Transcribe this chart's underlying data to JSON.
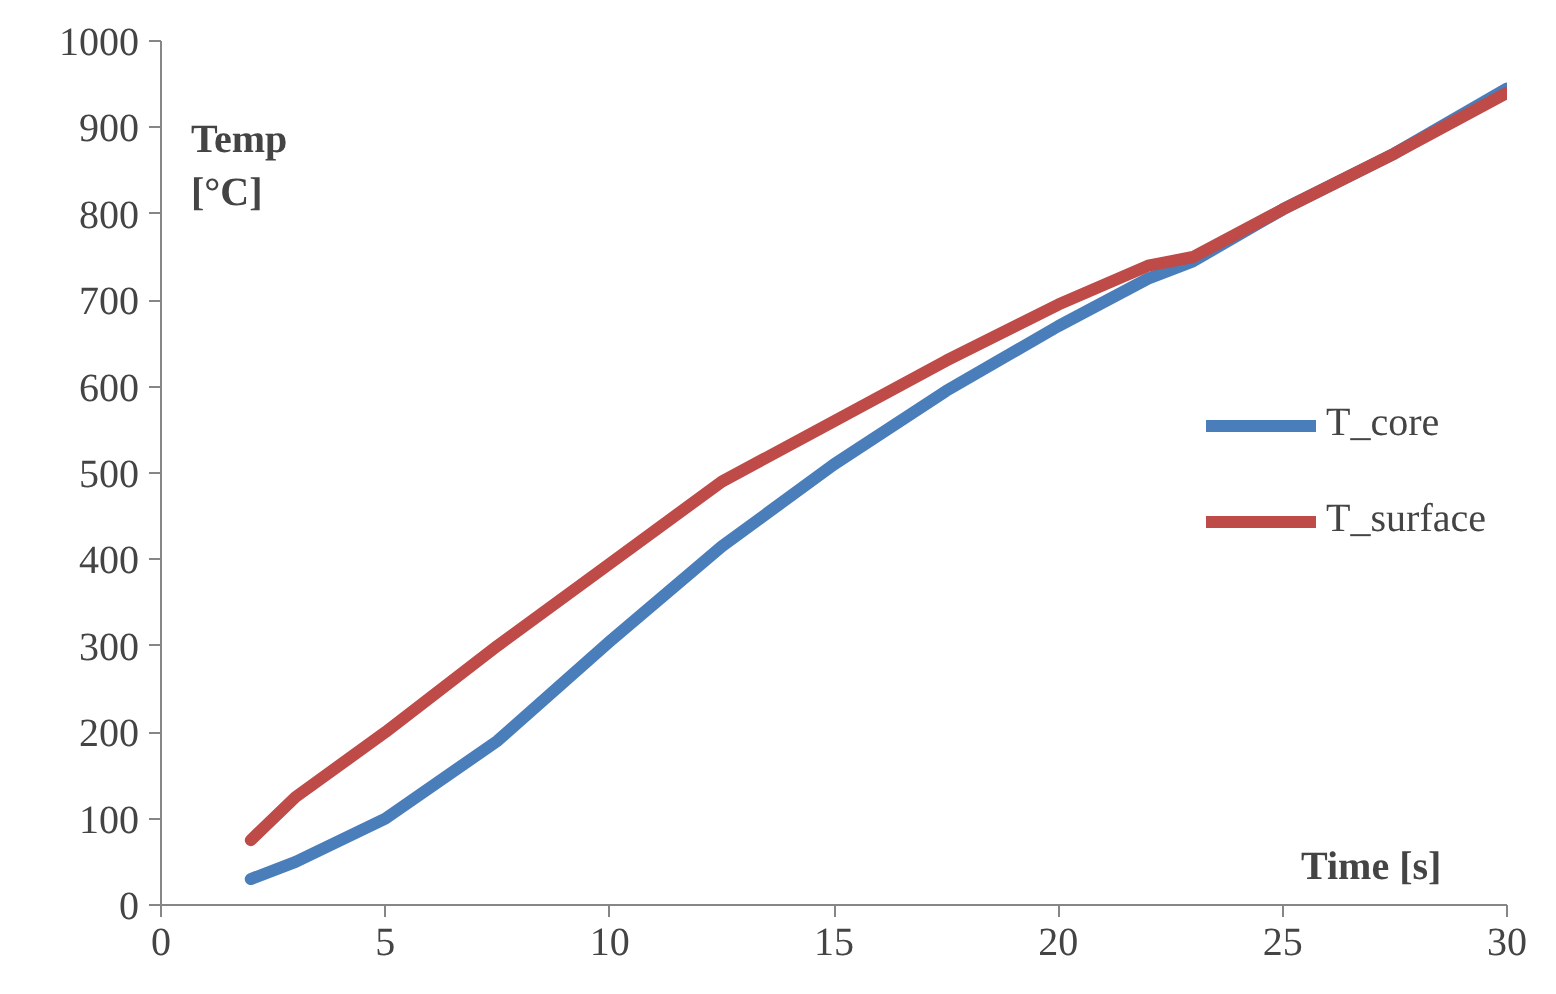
{
  "chart_data": {
    "type": "line",
    "xlabel": "Time [s]",
    "ylabel": "Temp\n[°C]",
    "xlim": [
      0,
      30
    ],
    "ylim": [
      0,
      1000
    ],
    "xticks": [
      0,
      5,
      10,
      15,
      20,
      25,
      30
    ],
    "yticks": [
      0,
      100,
      200,
      300,
      400,
      500,
      600,
      700,
      800,
      900,
      1000
    ],
    "grid": false,
    "legend": "right",
    "marker": "none",
    "line_style": "solid",
    "x": [
      2,
      3,
      5,
      7.5,
      10,
      12.5,
      15,
      17.5,
      20,
      22,
      23,
      25,
      27.5,
      30
    ],
    "series": [
      {
        "name": "T_core",
        "color": "#4a7ebb",
        "values": [
          30,
          50,
          100,
          190,
          305,
          415,
          510,
          595,
          670,
          725,
          745,
          805,
          870,
          945
        ]
      },
      {
        "name": "T_surface",
        "color": "#be4b48",
        "values": [
          75,
          125,
          200,
          300,
          395,
          490,
          560,
          630,
          695,
          740,
          750,
          805,
          870,
          940
        ]
      }
    ]
  }
}
